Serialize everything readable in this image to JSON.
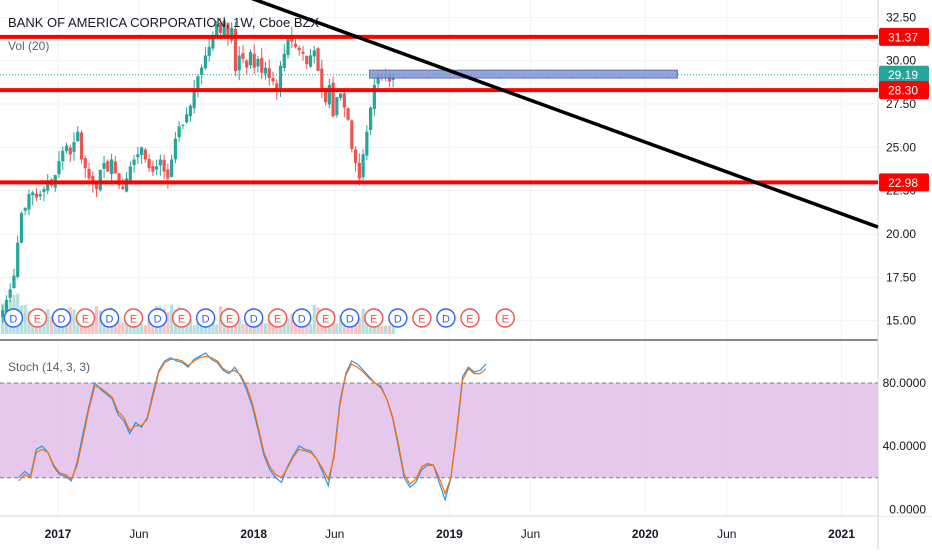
{
  "header": {
    "symbol_title": "BANK OF AMERICA CORPORATION, 1W, Cboe BZX",
    "volume_label": "Vol (20)"
  },
  "price_axis": {
    "ticks": [
      "32.50",
      "30.00",
      "27.50",
      "25.00",
      "22.50",
      "20.00",
      "17.50",
      "15.00"
    ],
    "range": [
      14.0,
      33.5
    ]
  },
  "time_axis": {
    "ticks": [
      "2017",
      "Jun",
      "2018",
      "Jun",
      "2019",
      "Jun",
      "2020",
      "Jun",
      "2021"
    ]
  },
  "levels": {
    "resistance_high": "31.37",
    "resistance_mid": "28.30",
    "support_low": "22.98",
    "last_price": "29.19"
  },
  "colors": {
    "level_line": "#ff0000",
    "trendline": "#000000",
    "candle_up": "#26a69a",
    "candle_down": "#ef5350",
    "last_price": "#26a69a",
    "stoch_k": "#2196f3",
    "stoch_d": "#ff6d00",
    "stoch_band": "#e1bee7",
    "zone_box": "#8e9ad6"
  },
  "earnings_markers": [
    "D",
    "E",
    "D",
    "E",
    "D",
    "E",
    "D",
    "E",
    "D",
    "E",
    "D",
    "E",
    "D",
    "E",
    "D",
    "E",
    "D",
    "E",
    "D",
    "E",
    "E"
  ],
  "stochastic": {
    "label": "Stoch (14, 3, 3)",
    "ticks": [
      "80.0000",
      "40.0000",
      "0.0000"
    ],
    "upper_band": 80,
    "lower_band": 20
  },
  "chart_data": [
    {
      "type": "candlestick",
      "title": "BANK OF AMERICA CORPORATION, 1W, Cboe BZX",
      "x_range": [
        "2016-09-15",
        "2021-03-10"
      ],
      "ylim": [
        14.0,
        33.5
      ],
      "weekly_close": [
        15.6,
        16.2,
        16.8,
        17.6,
        19.5,
        21.2,
        21.5,
        22.3,
        22.4,
        22.1,
        22.3,
        22.6,
        23.1,
        22.8,
        23.4,
        24.2,
        24.8,
        25.1,
        24.6,
        25.3,
        25.9,
        24.3,
        23.8,
        23.2,
        22.9,
        22.6,
        23.7,
        24.1,
        23.6,
        24.3,
        23.5,
        22.8,
        22.6,
        23.2,
        23.9,
        24.3,
        24.6,
        25.0,
        24.3,
        23.8,
        23.6,
        23.9,
        24.3,
        23.6,
        23.2,
        24.3,
        25.5,
        26.2,
        26.3,
        26.9,
        27.4,
        28.3,
        29.1,
        29.6,
        30.3,
        30.8,
        31.4,
        32.1,
        31.6,
        32.3,
        31.3,
        31.9,
        29.4,
        30.3,
        30.1,
        29.6,
        30.5,
        29.6,
        30.1,
        29.3,
        29.6,
        29.0,
        28.8,
        28.3,
        29.7,
        30.4,
        31.3,
        31.1,
        30.8,
        30.6,
        30.4,
        29.8,
        30.3,
        30.6,
        29.4,
        28.3,
        27.6,
        28.6,
        26.8,
        27.9,
        28.1,
        27.3,
        26.6,
        24.9,
        24.1,
        23.2,
        24.6,
        25.9,
        27.3,
        28.6,
        29.2,
        29.0,
        29.1,
        28.8,
        29.19
      ],
      "horizontal_levels": [
        31.37,
        28.3,
        22.98
      ],
      "trendline": {
        "start": {
          "date": "2017-12-10",
          "price": 33.8
        },
        "end": {
          "date": "2021-03-10",
          "price": 20.4
        }
      },
      "zone": {
        "start": "2018-08-05",
        "end": "2020-03-01",
        "price_low": 29.0,
        "price_high": 29.45
      },
      "last_price": 29.19
    },
    {
      "type": "line",
      "title": "Stoch (14, 3, 3)",
      "ylim": [
        -3,
        106
      ],
      "series": [
        {
          "name": "%K",
          "values": [
            20,
            24,
            21,
            38,
            40,
            36,
            27,
            22,
            21,
            18,
            30,
            48,
            65,
            80,
            76,
            73,
            70,
            60,
            56,
            48,
            55,
            52,
            58,
            74,
            88,
            94,
            96,
            94,
            93,
            90,
            95,
            97,
            99,
            95,
            93,
            88,
            86,
            90,
            84,
            76,
            65,
            50,
            34,
            25,
            20,
            17,
            27,
            34,
            40,
            38,
            37,
            32,
            24,
            15,
            35,
            68,
            86,
            94,
            92,
            88,
            84,
            80,
            78,
            70,
            58,
            40,
            20,
            14,
            17,
            25,
            28,
            28,
            17,
            6,
            20,
            50,
            84,
            90,
            87,
            88,
            92
          ]
        },
        {
          "name": "%D",
          "values": [
            18,
            22,
            20,
            36,
            38,
            36,
            28,
            23,
            22,
            19,
            28,
            45,
            63,
            78,
            77,
            74,
            71,
            62,
            58,
            50,
            53,
            53,
            57,
            72,
            87,
            93,
            95,
            95,
            94,
            91,
            94,
            96,
            97,
            96,
            94,
            89,
            87,
            88,
            85,
            78,
            67,
            52,
            36,
            27,
            22,
            20,
            26,
            33,
            38,
            37,
            36,
            32,
            26,
            19,
            33,
            66,
            85,
            92,
            90,
            87,
            83,
            80,
            77,
            70,
            59,
            42,
            22,
            16,
            19,
            27,
            29,
            28,
            20,
            10,
            20,
            48,
            82,
            89,
            86,
            86,
            89
          ]
        }
      ]
    }
  ]
}
